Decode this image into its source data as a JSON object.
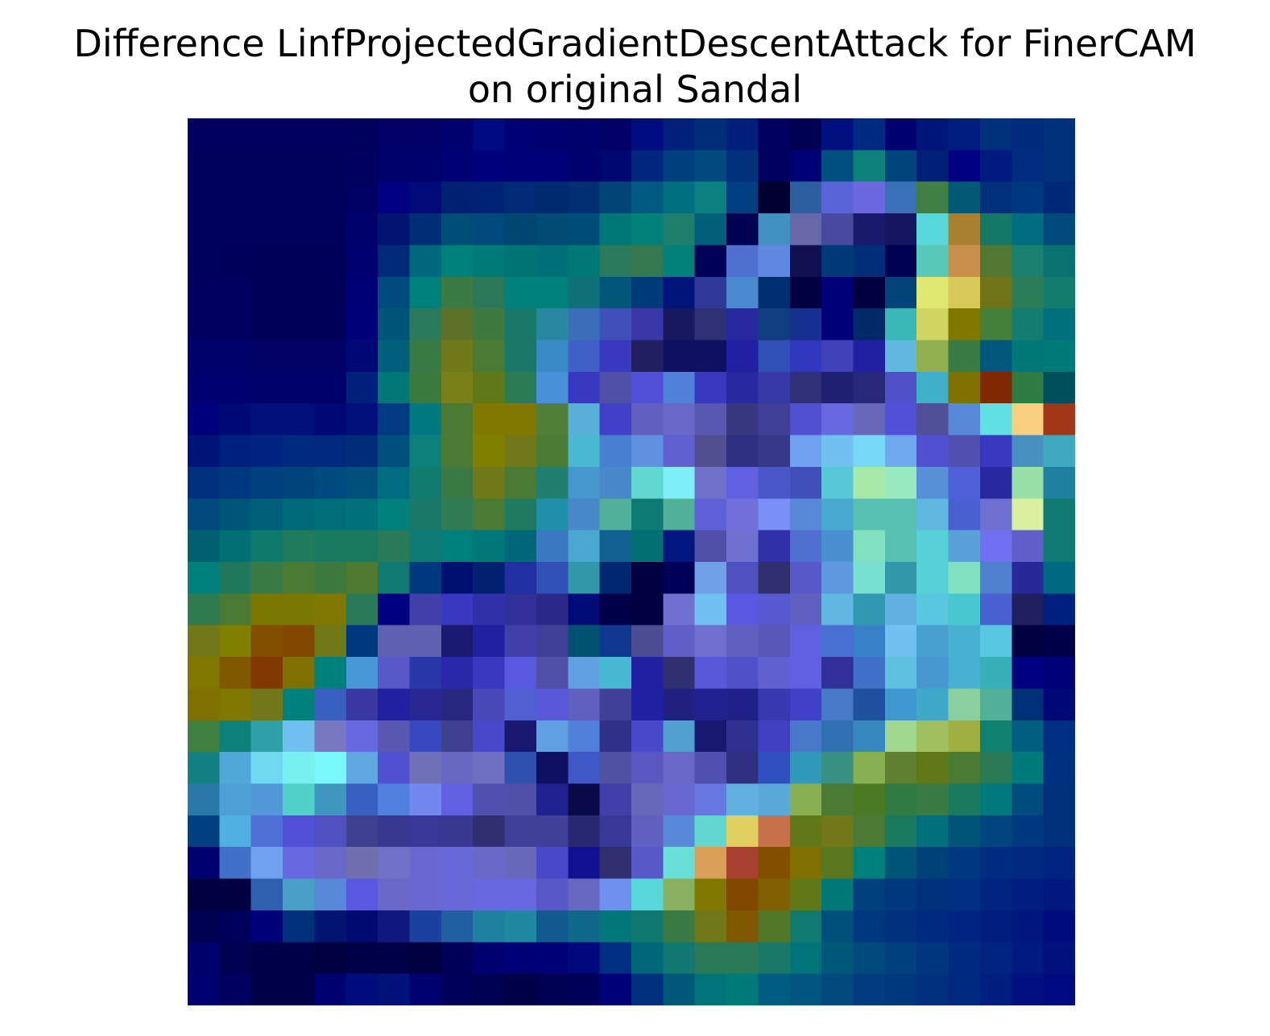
{
  "chart_data": {
    "type": "heatmap",
    "title_lines": [
      "Difference LinfProjectedGradientDescentAttack for FinerCAM",
      "on original Sandal"
    ],
    "axes": "off",
    "grid": false,
    "legend": "none",
    "rows": 28,
    "cols": 28,
    "cells": [
      [
        "#000060",
        "#000060",
        "#000060",
        "#000060",
        "#000060",
        "#00005C",
        "#000066",
        "#000066",
        "#000070",
        "#000A80",
        "#000075",
        "#000070",
        "#00006C",
        "#000066",
        "#000D80",
        "#00207A",
        "#002D78",
        "#001F7A",
        "#000060",
        "#000050",
        "#001080",
        "#002A80",
        "#000070",
        "#00157A",
        "#001D80",
        "#00307A",
        "#002A7C",
        "#00307A"
      ],
      [
        "#00005C",
        "#00005C",
        "#00005C",
        "#00005C",
        "#00005C",
        "#000060",
        "#00006A",
        "#00006C",
        "#000075",
        "#00007B",
        "#000078",
        "#000078",
        "#00006E",
        "#000670",
        "#00267E",
        "#003F7E",
        "#004A80",
        "#00307A",
        "#000060",
        "#000075",
        "#004F80",
        "#0E807A",
        "#00447C",
        "#001F77",
        "#000080",
        "#001A80",
        "#002D80",
        "#00307A"
      ],
      [
        "#00005C",
        "#00005C",
        "#00005C",
        "#00005C",
        "#00005C",
        "#000062",
        "#000080",
        "#000A78",
        "#002072",
        "#002276",
        "#002A76",
        "#002A70",
        "#003072",
        "#004575",
        "#005A80",
        "#007080",
        "#0A8080",
        "#004080",
        "#000030",
        "#2A60A0",
        "#5864D8",
        "#6C68E0",
        "#3A70B8",
        "#408044",
        "#005A74",
        "#00307A",
        "#003880",
        "#002878"
      ],
      [
        "#00005C",
        "#00005C",
        "#00005C",
        "#00005C",
        "#00005C",
        "#00006A",
        "#001470",
        "#002E74",
        "#004E78",
        "#004A7E",
        "#004672",
        "#004C74",
        "#004C78",
        "#007878",
        "#008078",
        "#1E806A",
        "#006078",
        "#000050",
        "#4090C0",
        "#6868A8",
        "#484AA0",
        "#1A1A6C",
        "#151560",
        "#58D8D8",
        "#A88030",
        "#147868",
        "#006E80",
        "#004A7C"
      ],
      [
        "#00005C",
        "#00005A",
        "#000058",
        "#000058",
        "#000058",
        "#000070",
        "#002A78",
        "#00687C",
        "#00807A",
        "#007A78",
        "#007474",
        "#007078",
        "#007876",
        "#2A7A5C",
        "#367850",
        "#008076",
        "#000056",
        "#5070D0",
        "#6088E0",
        "#101050",
        "#003878",
        "#002E78",
        "#000050",
        "#58C8B8",
        "#C8904C",
        "#507830",
        "#1A8070",
        "#0A7070"
      ],
      [
        "#000060",
        "#000060",
        "#000058",
        "#000058",
        "#000058",
        "#000076",
        "#004A7E",
        "#00807A",
        "#3A7A44",
        "#2A7858",
        "#00807A",
        "#00807A",
        "#107078",
        "#005878",
        "#003A78",
        "#00157A",
        "#303898",
        "#4A88D0",
        "#002E70",
        "#000040",
        "#000078",
        "#000040",
        "#00447A",
        "#E0E870",
        "#D8C858",
        "#707418",
        "#2C7C58",
        "#147C6C"
      ],
      [
        "#000060",
        "#000060",
        "#000058",
        "#000058",
        "#000058",
        "#000078",
        "#005478",
        "#2A7A5C",
        "#5C7228",
        "#3E7A40",
        "#1A7868",
        "#2888A0",
        "#3A6EB8",
        "#4050B8",
        "#3A38A8",
        "#181860",
        "#303075",
        "#2828A0",
        "#103E80",
        "#153090",
        "#000078",
        "#002A68",
        "#3AB8B8",
        "#D0D460",
        "#807800",
        "#448038",
        "#147C70",
        "#00707C"
      ],
      [
        "#00006A",
        "#00006A",
        "#000065",
        "#000065",
        "#000065",
        "#000874",
        "#00607C",
        "#3A7A44",
        "#707A18",
        "#4A7A34",
        "#1A7868",
        "#3A8AC8",
        "#4060C8",
        "#3838C0",
        "#202060",
        "#101060",
        "#101060",
        "#2020A0",
        "#3050B8",
        "#3038C0",
        "#4040B8",
        "#2020A0",
        "#60B8E0",
        "#90B050",
        "#3A7A44",
        "#00587C",
        "#007878",
        "#007A78"
      ],
      [
        "#000070",
        "#000070",
        "#00006A",
        "#00006A",
        "#00006A",
        "#00207A",
        "#007878",
        "#3A7A3C",
        "#7A8018",
        "#607818",
        "#2A7C54",
        "#4890D8",
        "#3838C0",
        "#5050A8",
        "#5050D8",
        "#5080D8",
        "#3838C0",
        "#2828A0",
        "#3838A8",
        "#303078",
        "#202070",
        "#282878",
        "#5050C8",
        "#40B0C8",
        "#807000",
        "#802800",
        "#307A44",
        "#00505C"
      ],
      [
        "#00007A",
        "#000876",
        "#00107A",
        "#00107A",
        "#000876",
        "#00107A",
        "#003A80",
        "#007A80",
        "#4A7A34",
        "#807800",
        "#807800",
        "#508038",
        "#58B0D8",
        "#4040C8",
        "#6060C0",
        "#6868C8",
        "#5858B0",
        "#383880",
        "#404098",
        "#5050D0",
        "#6868E0",
        "#6868B8",
        "#5050D8",
        "#505098",
        "#5888D8",
        "#60E0E0",
        "#F8D080",
        "#A03818"
      ],
      [
        "#001478",
        "#00207E",
        "#002280",
        "#002A7E",
        "#00287E",
        "#002C78",
        "#00507E",
        "#0E807A",
        "#4A7A34",
        "#808000",
        "#707818",
        "#4A7A34",
        "#4AB8D0",
        "#4880D0",
        "#6090E0",
        "#6060D0",
        "#505090",
        "#303080",
        "#383888",
        "#70A0F0",
        "#70C0F0",
        "#78D8F8",
        "#70A8F0",
        "#5050D0",
        "#5050B0",
        "#3838C0",
        "#4890C0",
        "#40A8C0"
      ],
      [
        "#00307E",
        "#003880",
        "#00407E",
        "#00447C",
        "#004A80",
        "#00507C",
        "#006C80",
        "#107C70",
        "#3A7A44",
        "#707A18",
        "#4A7A34",
        "#208070",
        "#4898D0",
        "#4888C8",
        "#60D8D0",
        "#80F0F8",
        "#7070C8",
        "#6060E0",
        "#4858C8",
        "#4050B8",
        "#58C8D8",
        "#A8E8A8",
        "#98E8C0",
        "#5890D8",
        "#5060D8",
        "#2828A0",
        "#98E0A8",
        "#2080A0"
      ],
      [
        "#004A7C",
        "#005678",
        "#006078",
        "#006A78",
        "#006E78",
        "#00707A",
        "#00807A",
        "#1A7868",
        "#307A54",
        "#4A7A34",
        "#207A60",
        "#2090A8",
        "#4888C8",
        "#50B098",
        "#0E7A74",
        "#50B098",
        "#6060D8",
        "#7070D8",
        "#7890F8",
        "#5888D8",
        "#48A8D0",
        "#58C0B0",
        "#58C0B0",
        "#60B8E0",
        "#4860D0",
        "#7070D0",
        "#D8F0A0",
        "#107A70"
      ],
      [
        "#006070",
        "#007074",
        "#0E7A6C",
        "#207A5C",
        "#1A7A60",
        "#1A7A60",
        "#287A58",
        "#0E7A74",
        "#00807A",
        "#00787A",
        "#006878",
        "#3A78C0",
        "#4AA8D0",
        "#106090",
        "#007070",
        "#001880",
        "#5050A8",
        "#7070D0",
        "#3030A8",
        "#5070D0",
        "#4890D0",
        "#80E0C0",
        "#58C0B0",
        "#58D0D8",
        "#58A0D8",
        "#7070F0",
        "#6060C8",
        "#107A70"
      ],
      [
        "#00807A",
        "#20785A",
        "#3A7A44",
        "#4A7A34",
        "#3E7A40",
        "#507A30",
        "#107A70",
        "#003880",
        "#001070",
        "#002070",
        "#2030A0",
        "#3050B8",
        "#3098A8",
        "#002870",
        "#000040",
        "#000058",
        "#70A0E8",
        "#5050C0",
        "#303070",
        "#5858C8",
        "#6098E0",
        "#78E0D0",
        "#3098A8",
        "#58D0D8",
        "#80E0C0",
        "#5080D0",
        "#282898",
        "#006880"
      ],
      [
        "#307A50",
        "#4A7A34",
        "#7A7800",
        "#7A7800",
        "#807800",
        "#287A58",
        "#000080",
        "#4040A8",
        "#3838C0",
        "#3030A8",
        "#303098",
        "#2A2888",
        "#000C78",
        "#000048",
        "#000040",
        "#7070D0",
        "#70C0F0",
        "#5858E0",
        "#5858D0",
        "#6060C0",
        "#60B8E0",
        "#3098B0",
        "#60B0E0",
        "#58C8E0",
        "#48C8D0",
        "#4860D0",
        "#202060",
        "#002080"
      ],
      [
        "#707818",
        "#808000",
        "#805000",
        "#804800",
        "#707818",
        "#003880",
        "#6060B0",
        "#6060B0",
        "#1A1A70",
        "#2020A0",
        "#4040A8",
        "#404098",
        "#005070",
        "#103890",
        "#4C4C90",
        "#6060C8",
        "#7070D0",
        "#6060C0",
        "#5858B8",
        "#6060E0",
        "#4870D0",
        "#3880C8",
        "#70C0F0",
        "#48A0D0",
        "#48B0D0",
        "#58C8E0",
        "#000040",
        "#000048"
      ],
      [
        "#807800",
        "#805800",
        "#803800",
        "#807000",
        "#00807A",
        "#4898D8",
        "#5858C8",
        "#2838A8",
        "#2828A8",
        "#3838C0",
        "#5858E0",
        "#5050A8",
        "#60A0E0",
        "#48B8D0",
        "#2020A0",
        "#303070",
        "#5858D8",
        "#5050C8",
        "#6060D0",
        "#6060E0",
        "#303098",
        "#4070C8",
        "#60C0E0",
        "#4898D0",
        "#48B0D0",
        "#38B0B8",
        "#000080",
        "#000078"
      ],
      [
        "#807000",
        "#807800",
        "#707818",
        "#00807A",
        "#3860C0",
        "#3838A0",
        "#2020A0",
        "#282890",
        "#282880",
        "#4848B8",
        "#5060D0",
        "#5858D8",
        "#6060C0",
        "#404098",
        "#2020A0",
        "#202080",
        "#202090",
        "#202088",
        "#3838B0",
        "#4040C8",
        "#4878C8",
        "#2050A0",
        "#4098D0",
        "#40A8C8",
        "#88D0A0",
        "#50B098",
        "#003078",
        "#000878"
      ],
      [
        "#408040",
        "#0E807A",
        "#30A0A8",
        "#70C0F0",
        "#7878C0",
        "#6868E0",
        "#5858B0",
        "#3848C0",
        "#404090",
        "#4848C8",
        "#181870",
        "#60A0E0",
        "#5080D8",
        "#303088",
        "#4848C8",
        "#50A0D0",
        "#181870",
        "#303090",
        "#4040C0",
        "#4878C8",
        "#3070B0",
        "#3888C0",
        "#A0D890",
        "#A0C060",
        "#A0B040",
        "#108070",
        "#005E80",
        "#002E80"
      ],
      [
        "#108080",
        "#50A8D8",
        "#70D8F0",
        "#78F0F0",
        "#78F8F8",
        "#60A8E0",
        "#5050D0",
        "#7070B8",
        "#6868C0",
        "#7070C0",
        "#3050B0",
        "#101060",
        "#3F58C8",
        "#5050A0",
        "#5858C0",
        "#6868C8",
        "#5050B0",
        "#303080",
        "#3050C0",
        "#3098B8",
        "#389080",
        "#88B050",
        "#608030",
        "#607818",
        "#4A7A34",
        "#2A7A58",
        "#007A7A",
        "#003080"
      ],
      [
        "#2878A8",
        "#50A0D8",
        "#5098D8",
        "#50D0C8",
        "#4098C0",
        "#3860C0",
        "#5080E0",
        "#7088F0",
        "#6060E0",
        "#5050B0",
        "#5050A8",
        "#202090",
        "#0A0A48",
        "#4040A8",
        "#6868B8",
        "#6868D0",
        "#6878E0",
        "#60B0E0",
        "#58A8D8",
        "#88B050",
        "#4A7A34",
        "#4A7A24",
        "#307A44",
        "#3A7A44",
        "#1A7A60",
        "#00787C",
        "#004C7C",
        "#00307A"
      ],
      [
        "#004080",
        "#50B0E0",
        "#5070D8",
        "#5050D8",
        "#5050C0",
        "#404090",
        "#383890",
        "#383898",
        "#383890",
        "#303070",
        "#404098",
        "#404098",
        "#282870",
        "#383898",
        "#6060C0",
        "#5888D8",
        "#60D8D0",
        "#E0D060",
        "#C87048",
        "#607818",
        "#707818",
        "#4A7A34",
        "#1A7A60",
        "#00707A",
        "#005478",
        "#004480",
        "#003880",
        "#00307A"
      ],
      [
        "#000070",
        "#4070C8",
        "#70A0F0",
        "#6868E0",
        "#6868C8",
        "#7070B0",
        "#7070C8",
        "#6868D0",
        "#6868D8",
        "#6868C8",
        "#6868B8",
        "#4848C8",
        "#101090",
        "#303070",
        "#5858C8",
        "#68E0D8",
        "#D8A058",
        "#A84030",
        "#805000",
        "#807000",
        "#5A7820",
        "#00807A",
        "#005578",
        "#004278",
        "#003880",
        "#002C80",
        "#00287E",
        "#002480"
      ],
      [
        "#000040",
        "#000040",
        "#3060B0",
        "#48A0C8",
        "#5888D8",
        "#5858E0",
        "#6868C8",
        "#6868D0",
        "#6868D8",
        "#6868E0",
        "#6868E0",
        "#5858C8",
        "#6868C0",
        "#7090F0",
        "#58D8D8",
        "#88B060",
        "#807800",
        "#804800",
        "#806000",
        "#607818",
        "#007878",
        "#00407C",
        "#00387E",
        "#00307A",
        "#002E80",
        "#002480",
        "#001E80",
        "#001880"
      ],
      [
        "#000050",
        "#00005C",
        "#000078",
        "#00307A",
        "#001470",
        "#000A70",
        "#101880",
        "#1A40A0",
        "#2060A0",
        "#2080A0",
        "#2088A0",
        "#105A90",
        "#106888",
        "#00787A",
        "#107870",
        "#3A7A44",
        "#707818",
        "#805800",
        "#507828",
        "#107A70",
        "#00507C",
        "#003880",
        "#00307E",
        "#002A80",
        "#002480",
        "#001E80",
        "#00187E",
        "#000C7C"
      ],
      [
        "#00006C",
        "#000050",
        "#000048",
        "#000048",
        "#000040",
        "#000048",
        "#000048",
        "#000040",
        "#000058",
        "#000070",
        "#000076",
        "#000076",
        "#00087C",
        "#002E80",
        "#006878",
        "#107870",
        "#2A7A58",
        "#2A7A58",
        "#1A7868",
        "#007478",
        "#005878",
        "#004A7E",
        "#00407E",
        "#00367E",
        "#002A80",
        "#002480",
        "#001A80",
        "#00107C"
      ],
      [
        "#000070",
        "#000060",
        "#000048",
        "#000048",
        "#000070",
        "#000C7C",
        "#00127A",
        "#000070",
        "#000058",
        "#000050",
        "#000048",
        "#000050",
        "#000058",
        "#000078",
        "#00307E",
        "#005878",
        "#007478",
        "#007A78",
        "#005C80",
        "#005680",
        "#004A7E",
        "#003C7E",
        "#00387E",
        "#00307E",
        "#002A80",
        "#001E80",
        "#001080",
        "#000A80"
      ]
    ]
  }
}
